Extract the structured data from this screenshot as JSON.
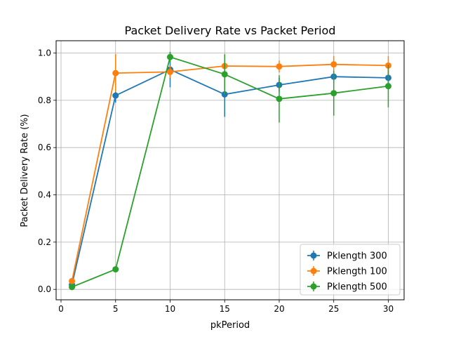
{
  "chart_data": {
    "type": "line",
    "title": "Packet Delivery Rate vs Packet Period",
    "xlabel": "pkPeriod",
    "ylabel": "Packet Delivery Rate (%)",
    "xlim": [
      -0.45,
      31.45
    ],
    "ylim": [
      -0.044,
      1.052
    ],
    "xticks": [
      0,
      5,
      10,
      15,
      20,
      25,
      30
    ],
    "yticks": [
      0.0,
      0.2,
      0.4,
      0.6,
      0.8,
      1.0
    ],
    "xtick_labels": [
      "0",
      "5",
      "10",
      "15",
      "20",
      "25",
      "30"
    ],
    "ytick_labels": [
      "0.0",
      "0.2",
      "0.4",
      "0.6",
      "0.8",
      "1.0"
    ],
    "grid": true,
    "legend_position": "lower-right",
    "x": [
      1,
      5,
      10,
      15,
      20,
      25,
      30
    ],
    "series": [
      {
        "name": "Pklength 300",
        "color": "#1f77b4",
        "values": [
          0.02,
          0.82,
          0.93,
          0.825,
          0.865,
          0.9,
          0.895
        ],
        "errors": [
          0.01,
          0.03,
          0.075,
          0.095,
          0.03,
          0.025,
          0.03
        ]
      },
      {
        "name": "Pklength 100",
        "color": "#ff7f0e",
        "values": [
          0.035,
          0.915,
          0.92,
          0.945,
          0.943,
          0.952,
          0.947
        ],
        "errors": [
          0.01,
          0.08,
          0.025,
          0.015,
          0.025,
          0.035,
          0.04
        ]
      },
      {
        "name": "Pklength 500",
        "color": "#2ca02c",
        "values": [
          0.01,
          0.085,
          0.983,
          0.91,
          0.806,
          0.83,
          0.86
        ],
        "errors": [
          0.005,
          0.01,
          0.02,
          0.085,
          0.1,
          0.095,
          0.09
        ]
      }
    ]
  }
}
